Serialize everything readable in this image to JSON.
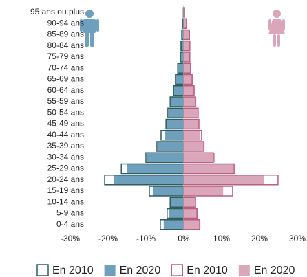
{
  "chart_data": {
    "type": "pyramid",
    "categories": [
      "95 ans ou plus",
      "90-94 ans",
      "85-89 ans",
      "80-84 ans",
      "75-79 ans",
      "70-74 ans",
      "65-69 ans",
      "60-64 ans",
      "55-59 ans",
      "50-54 ans",
      "45-49 ans",
      "40-44 ans",
      "35-39 ans",
      "30-34 ans",
      "25-29 ans",
      "20-24 ans",
      "15-19 ans",
      "10-14 ans",
      "5-9 ans",
      "0-4 ans"
    ],
    "series": [
      {
        "name": "En 2010",
        "color": "#2f5d5c",
        "style": "outline",
        "values": [
          -0.1,
          -0.2,
          -0.5,
          -0.7,
          -0.9,
          -1.6,
          -2.2,
          -2.7,
          -3.6,
          -4.2,
          -4.7,
          -6.0,
          -7.1,
          -10.0,
          -16.5,
          -20.9,
          -9.1,
          -3.6,
          -4.4,
          -6.2
        ]
      },
      {
        "name": "En 2020",
        "color": "#6e9fbd",
        "style": "filled",
        "values": [
          -0.2,
          -0.4,
          -0.7,
          -0.9,
          -1.1,
          -1.5,
          -2.0,
          -2.7,
          -3.5,
          -4.0,
          -4.7,
          -4.9,
          -6.9,
          -9.8,
          -14.9,
          -18.5,
          -8.2,
          -3.6,
          -4.0,
          -5.3
        ]
      },
      {
        "name": "En 2010",
        "color": "#b85f80",
        "style": "outline",
        "values": [
          0.2,
          0.7,
          1.5,
          1.6,
          1.6,
          1.8,
          2.2,
          2.7,
          3.1,
          3.8,
          4.0,
          4.7,
          5.3,
          7.8,
          13.3,
          24.9,
          12.9,
          3.1,
          3.5,
          4.2
        ]
      },
      {
        "name": "En 2020",
        "color": "#d9a7b9",
        "style": "filled",
        "values": [
          0.2,
          0.7,
          1.6,
          1.6,
          1.6,
          2.0,
          2.4,
          3.1,
          3.3,
          3.8,
          4.0,
          4.2,
          5.5,
          8.2,
          13.3,
          21.1,
          10.4,
          3.1,
          3.8,
          4.4
        ]
      }
    ],
    "xlim": [
      -30,
      30
    ],
    "xticks": [
      {
        "value": -30,
        "label": "-30%"
      },
      {
        "value": -20,
        "label": "-20%"
      },
      {
        "value": -10,
        "label": "-10%"
      },
      {
        "value": 0,
        "label": "0%"
      },
      {
        "value": 10,
        "label": "10%"
      },
      {
        "value": 20,
        "label": "20%"
      },
      {
        "value": 30,
        "label": "30%"
      }
    ],
    "grid": false
  }
}
